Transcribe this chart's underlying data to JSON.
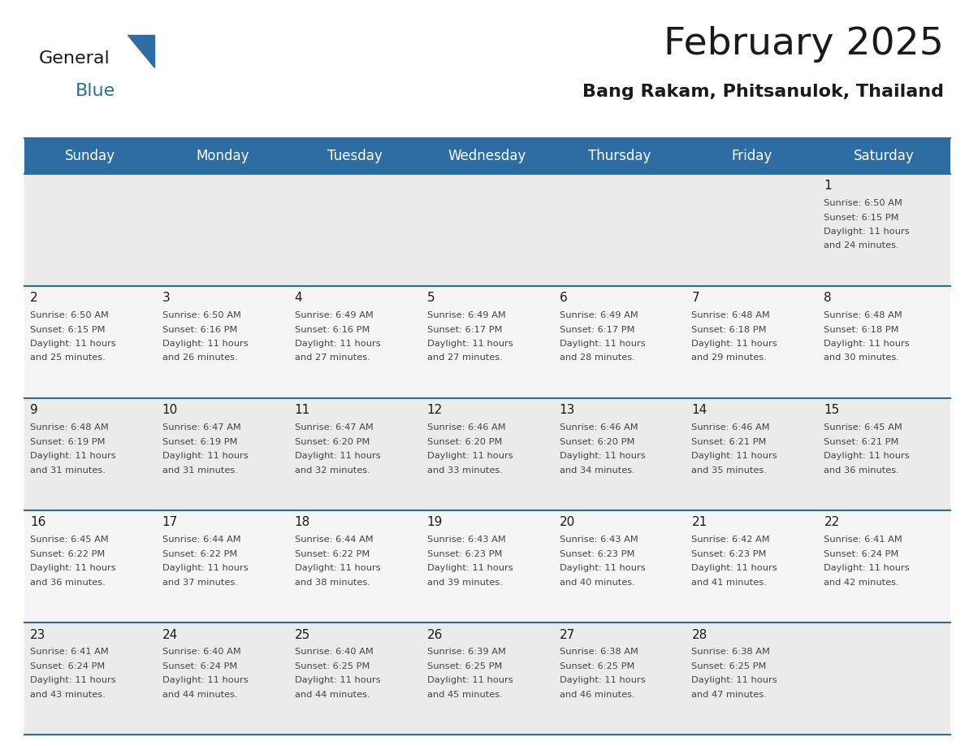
{
  "title": "February 2025",
  "subtitle": "Bang Rakam, Phitsanulok, Thailand",
  "header_color": "#2e6da4",
  "header_text_color": "#ffffff",
  "day_names": [
    "Sunday",
    "Monday",
    "Tuesday",
    "Wednesday",
    "Thursday",
    "Friday",
    "Saturday"
  ],
  "background_color": "#ffffff",
  "cell_bg_even": "#f2f2f2",
  "cell_bg_odd": "#ffffff",
  "row1_bg": "#ebebeb",
  "line_color": "#2e6da4",
  "title_fontsize": 34,
  "subtitle_fontsize": 16,
  "day_header_fontsize": 12,
  "cell_day_fontsize": 11,
  "cell_text_fontsize": 8.2,
  "calendar": [
    [
      null,
      null,
      null,
      null,
      null,
      null,
      {
        "day": 1,
        "sunrise": "6:50 AM",
        "sunset": "6:15 PM",
        "daylight_line1": "Daylight: 11 hours",
        "daylight_line2": "and 24 minutes."
      }
    ],
    [
      {
        "day": 2,
        "sunrise": "6:50 AM",
        "sunset": "6:15 PM",
        "daylight_line1": "Daylight: 11 hours",
        "daylight_line2": "and 25 minutes."
      },
      {
        "day": 3,
        "sunrise": "6:50 AM",
        "sunset": "6:16 PM",
        "daylight_line1": "Daylight: 11 hours",
        "daylight_line2": "and 26 minutes."
      },
      {
        "day": 4,
        "sunrise": "6:49 AM",
        "sunset": "6:16 PM",
        "daylight_line1": "Daylight: 11 hours",
        "daylight_line2": "and 27 minutes."
      },
      {
        "day": 5,
        "sunrise": "6:49 AM",
        "sunset": "6:17 PM",
        "daylight_line1": "Daylight: 11 hours",
        "daylight_line2": "and 27 minutes."
      },
      {
        "day": 6,
        "sunrise": "6:49 AM",
        "sunset": "6:17 PM",
        "daylight_line1": "Daylight: 11 hours",
        "daylight_line2": "and 28 minutes."
      },
      {
        "day": 7,
        "sunrise": "6:48 AM",
        "sunset": "6:18 PM",
        "daylight_line1": "Daylight: 11 hours",
        "daylight_line2": "and 29 minutes."
      },
      {
        "day": 8,
        "sunrise": "6:48 AM",
        "sunset": "6:18 PM",
        "daylight_line1": "Daylight: 11 hours",
        "daylight_line2": "and 30 minutes."
      }
    ],
    [
      {
        "day": 9,
        "sunrise": "6:48 AM",
        "sunset": "6:19 PM",
        "daylight_line1": "Daylight: 11 hours",
        "daylight_line2": "and 31 minutes."
      },
      {
        "day": 10,
        "sunrise": "6:47 AM",
        "sunset": "6:19 PM",
        "daylight_line1": "Daylight: 11 hours",
        "daylight_line2": "and 31 minutes."
      },
      {
        "day": 11,
        "sunrise": "6:47 AM",
        "sunset": "6:20 PM",
        "daylight_line1": "Daylight: 11 hours",
        "daylight_line2": "and 32 minutes."
      },
      {
        "day": 12,
        "sunrise": "6:46 AM",
        "sunset": "6:20 PM",
        "daylight_line1": "Daylight: 11 hours",
        "daylight_line2": "and 33 minutes."
      },
      {
        "day": 13,
        "sunrise": "6:46 AM",
        "sunset": "6:20 PM",
        "daylight_line1": "Daylight: 11 hours",
        "daylight_line2": "and 34 minutes."
      },
      {
        "day": 14,
        "sunrise": "6:46 AM",
        "sunset": "6:21 PM",
        "daylight_line1": "Daylight: 11 hours",
        "daylight_line2": "and 35 minutes."
      },
      {
        "day": 15,
        "sunrise": "6:45 AM",
        "sunset": "6:21 PM",
        "daylight_line1": "Daylight: 11 hours",
        "daylight_line2": "and 36 minutes."
      }
    ],
    [
      {
        "day": 16,
        "sunrise": "6:45 AM",
        "sunset": "6:22 PM",
        "daylight_line1": "Daylight: 11 hours",
        "daylight_line2": "and 36 minutes."
      },
      {
        "day": 17,
        "sunrise": "6:44 AM",
        "sunset": "6:22 PM",
        "daylight_line1": "Daylight: 11 hours",
        "daylight_line2": "and 37 minutes."
      },
      {
        "day": 18,
        "sunrise": "6:44 AM",
        "sunset": "6:22 PM",
        "daylight_line1": "Daylight: 11 hours",
        "daylight_line2": "and 38 minutes."
      },
      {
        "day": 19,
        "sunrise": "6:43 AM",
        "sunset": "6:23 PM",
        "daylight_line1": "Daylight: 11 hours",
        "daylight_line2": "and 39 minutes."
      },
      {
        "day": 20,
        "sunrise": "6:43 AM",
        "sunset": "6:23 PM",
        "daylight_line1": "Daylight: 11 hours",
        "daylight_line2": "and 40 minutes."
      },
      {
        "day": 21,
        "sunrise": "6:42 AM",
        "sunset": "6:23 PM",
        "daylight_line1": "Daylight: 11 hours",
        "daylight_line2": "and 41 minutes."
      },
      {
        "day": 22,
        "sunrise": "6:41 AM",
        "sunset": "6:24 PM",
        "daylight_line1": "Daylight: 11 hours",
        "daylight_line2": "and 42 minutes."
      }
    ],
    [
      {
        "day": 23,
        "sunrise": "6:41 AM",
        "sunset": "6:24 PM",
        "daylight_line1": "Daylight: 11 hours",
        "daylight_line2": "and 43 minutes."
      },
      {
        "day": 24,
        "sunrise": "6:40 AM",
        "sunset": "6:24 PM",
        "daylight_line1": "Daylight: 11 hours",
        "daylight_line2": "and 44 minutes."
      },
      {
        "day": 25,
        "sunrise": "6:40 AM",
        "sunset": "6:25 PM",
        "daylight_line1": "Daylight: 11 hours",
        "daylight_line2": "and 44 minutes."
      },
      {
        "day": 26,
        "sunrise": "6:39 AM",
        "sunset": "6:25 PM",
        "daylight_line1": "Daylight: 11 hours",
        "daylight_line2": "and 45 minutes."
      },
      {
        "day": 27,
        "sunrise": "6:38 AM",
        "sunset": "6:25 PM",
        "daylight_line1": "Daylight: 11 hours",
        "daylight_line2": "and 46 minutes."
      },
      {
        "day": 28,
        "sunrise": "6:38 AM",
        "sunset": "6:25 PM",
        "daylight_line1": "Daylight: 11 hours",
        "daylight_line2": "and 47 minutes."
      },
      null
    ]
  ]
}
